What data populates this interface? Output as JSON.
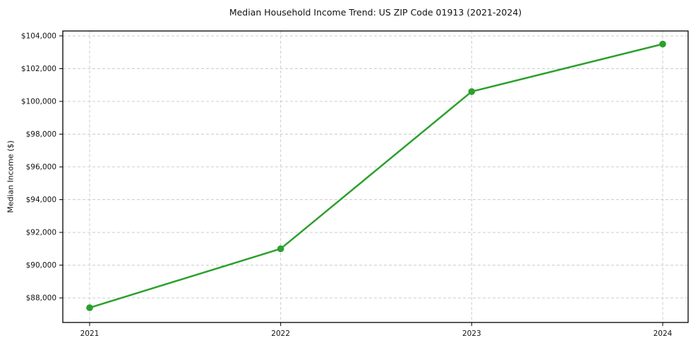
{
  "chart_data": {
    "type": "line",
    "title": "Median Household Income Trend: US ZIP Code 01913 (2021-2024)",
    "xlabel": "",
    "ylabel": "Median Income ($)",
    "categories": [
      "2021",
      "2022",
      "2023",
      "2024"
    ],
    "values": [
      87400,
      91000,
      100600,
      103500
    ],
    "ylim": [
      86500,
      104300
    ],
    "yticks": [
      88000,
      90000,
      92000,
      94000,
      96000,
      98000,
      100000,
      102000,
      104000
    ],
    "ytick_labels": [
      "$88,000",
      "$90,000",
      "$92,000",
      "$94,000",
      "$96,000",
      "$98,000",
      "$100,000",
      "$102,000",
      "$104,000"
    ],
    "grid": "dashed",
    "legend": "none",
    "line_color": "#2ca02c",
    "marker": "circle",
    "grid_color": "#cccccc",
    "axis_color": "#000000",
    "text_color": "#111111"
  }
}
